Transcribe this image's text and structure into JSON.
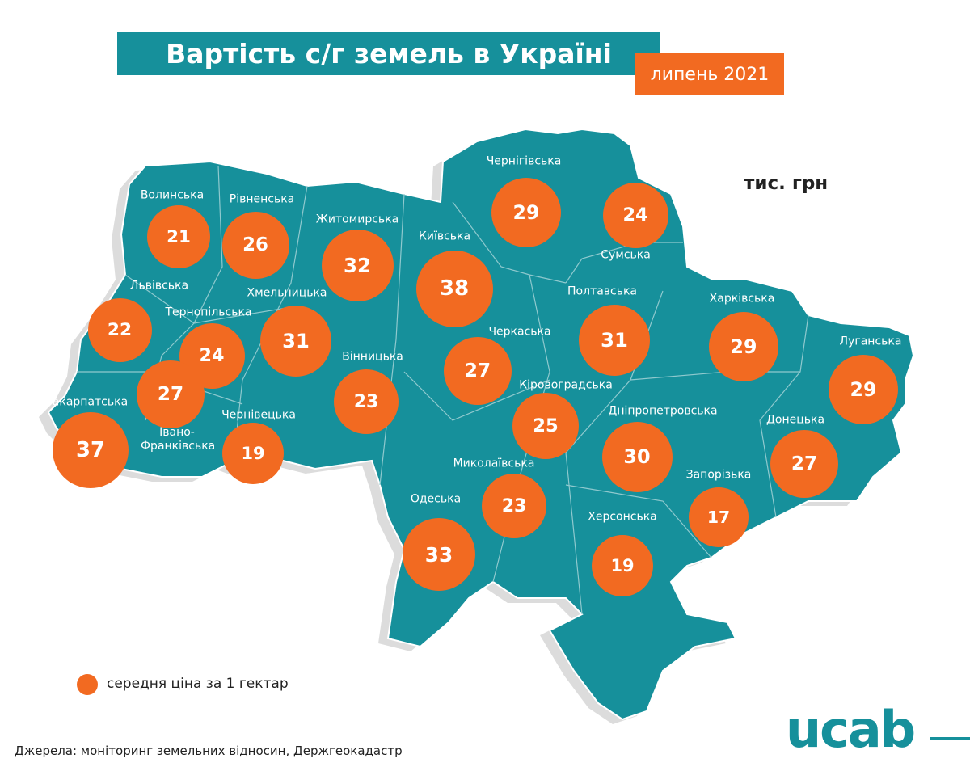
{
  "header": {
    "title": "Вартість с/г земель в Україні",
    "date": "липень 2021"
  },
  "unit": "тис. грн",
  "regions": [
    {
      "name": "Волинська",
      "value": 21
    },
    {
      "name": "Рівненська",
      "value": 26
    },
    {
      "name": "Житомирська",
      "value": 32
    },
    {
      "name": "Київська",
      "value": 38
    },
    {
      "name": "Чернігівська",
      "value": 29
    },
    {
      "name": "Сумська",
      "value": 24
    },
    {
      "name": "Львівська",
      "value": 22
    },
    {
      "name": "Тернопільська",
      "value": 24
    },
    {
      "name": "Хмельницька",
      "value": 31
    },
    {
      "name": "Вінницька",
      "value": 23
    },
    {
      "name": "Черкаська",
      "value": 27
    },
    {
      "name": "Полтавська",
      "value": 31
    },
    {
      "name": "Харківська",
      "value": 29
    },
    {
      "name": "Луганська",
      "value": 29
    },
    {
      "name": "Закарпатська",
      "value": 37
    },
    {
      "name": "Івано-Франківська",
      "value": 27
    },
    {
      "name": "Чернівецька",
      "value": 19
    },
    {
      "name": "Кіровоградська",
      "value": 25
    },
    {
      "name": "Дніпропетровська",
      "value": 30
    },
    {
      "name": "Донецька",
      "value": 27
    },
    {
      "name": "Миколаївська",
      "value": 23
    },
    {
      "name": "Одеська",
      "value": 33
    },
    {
      "name": "Херсонська",
      "value": 19
    },
    {
      "name": "Запорізька",
      "value": 17
    }
  ],
  "legend": "середня ціна за 1 гектар",
  "source": "Джерела: моніторинг земельних відносин, Держгеокадастр",
  "logo": "ucab"
}
